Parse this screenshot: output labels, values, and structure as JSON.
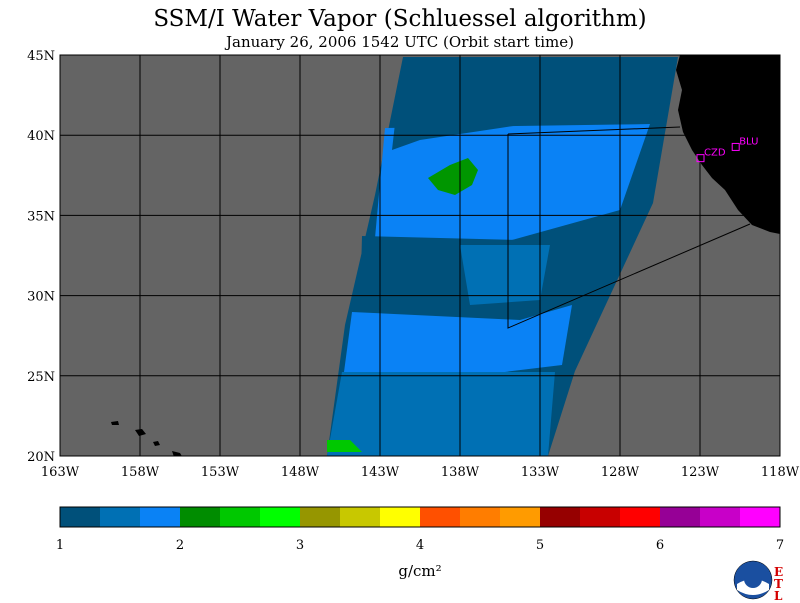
{
  "title": "SSM/I Water Vapor (Schluessel algorithm)",
  "subtitle": "January 26, 2006  1542 UTC  (Orbit start time)",
  "map": {
    "lon_min": -163,
    "lon_max": -118,
    "lat_min": 20,
    "lat_max": 45,
    "lon_labels": [
      "163W",
      "158W",
      "153W",
      "148W",
      "143W",
      "138W",
      "133W",
      "128W",
      "123W",
      "118W"
    ],
    "lat_labels": [
      "45N",
      "40N",
      "35N",
      "30N",
      "25N",
      "20N"
    ],
    "stations": [
      {
        "label": "CZD",
        "lon": -123.0,
        "lat": 38.6
      },
      {
        "label": "BLU",
        "lon": -120.8,
        "lat": 39.3
      }
    ],
    "colors": {
      "background": "#646464",
      "land": "#000000",
      "swath_dark": "#00507a",
      "swath_mid": "#0070b4",
      "swath_light": "#0a82f5",
      "green": "#009600",
      "station": "#ff00ff"
    }
  },
  "colorbar": {
    "colors": [
      "#00507a",
      "#0070b4",
      "#0a82f5",
      "#008c00",
      "#00c800",
      "#00ff00",
      "#969600",
      "#c8c800",
      "#ffff00",
      "#ff5000",
      "#ff7d00",
      "#ff9b00",
      "#960000",
      "#c80000",
      "#ff0000",
      "#960096",
      "#c800c8",
      "#ff00ff"
    ],
    "tick_labels": [
      "1",
      "2",
      "3",
      "4",
      "5",
      "6",
      "7"
    ],
    "units": "g/cm²"
  },
  "logo": {
    "name": "NOAA",
    "etl": [
      "E",
      "T",
      "L"
    ]
  }
}
